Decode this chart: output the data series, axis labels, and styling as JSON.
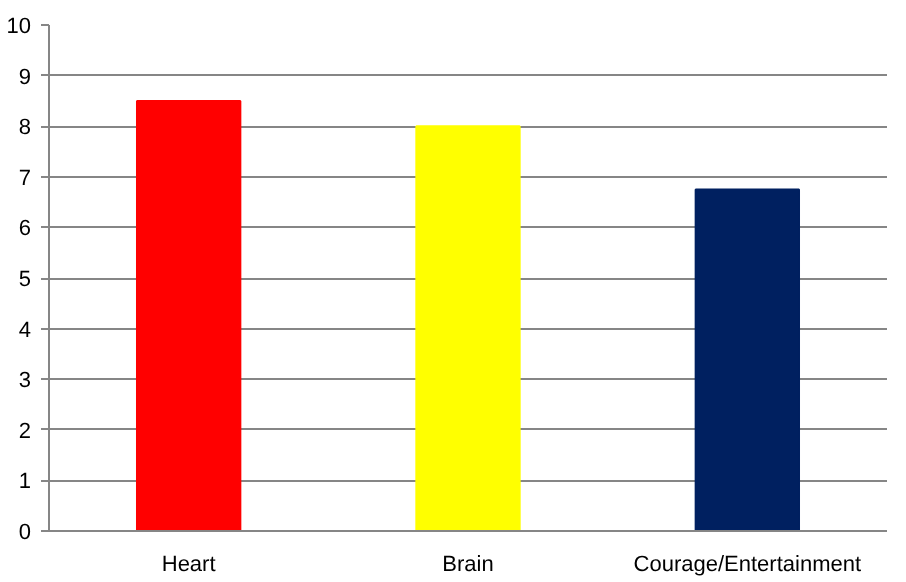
{
  "chart_data": {
    "type": "bar",
    "categories": [
      "Heart",
      "Brain",
      "Courage/Entertainment"
    ],
    "values": [
      8.5,
      8.0,
      6.75
    ],
    "colors": [
      "#ff0000",
      "#ffff00",
      "#002060"
    ],
    "ylim": [
      0,
      10
    ],
    "yticks": [
      0,
      1,
      2,
      3,
      4,
      5,
      6,
      7,
      8,
      9,
      10
    ],
    "grid": "y"
  }
}
